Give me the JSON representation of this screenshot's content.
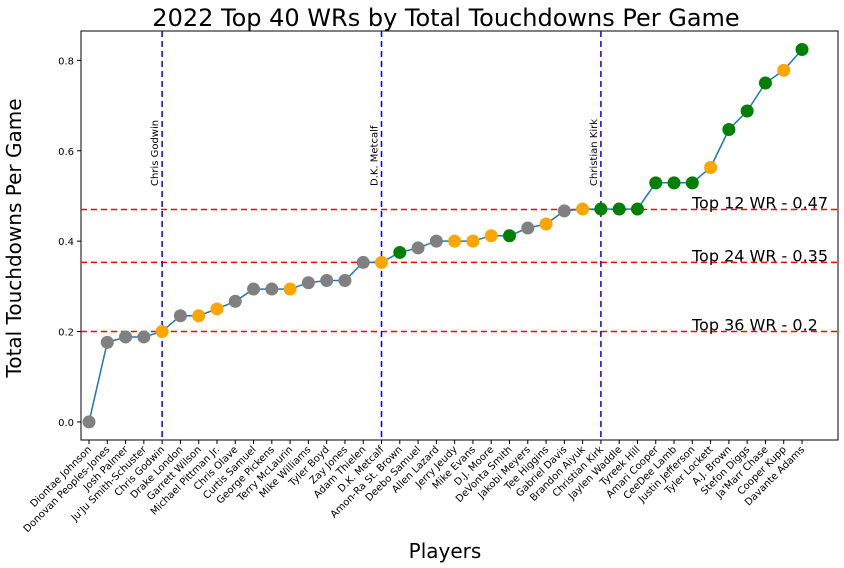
{
  "chart_data": {
    "type": "line",
    "title": "2022 Top 40 WRs by Total Touchdowns Per Game",
    "xlabel": "Players",
    "ylabel": "Total Touchdowns Per Game",
    "ylim": [
      -0.04,
      0.865
    ],
    "yticks": [
      "0.0",
      "0.2",
      "0.4",
      "0.6",
      "0.8"
    ],
    "ytick_values": [
      0.0,
      0.2,
      0.4,
      0.6,
      0.8
    ],
    "grid": false,
    "line_color": "#1f77b4",
    "players": [
      {
        "name": "Diontae Johnson",
        "value": 0.0,
        "color": "#808080"
      },
      {
        "name": "Donovan Peoples-Jones",
        "value": 0.176,
        "color": "#808080"
      },
      {
        "name": "Josh Palmer",
        "value": 0.188,
        "color": "#808080"
      },
      {
        "name": "Ju'Ju Smith-Schuster",
        "value": 0.188,
        "color": "#808080"
      },
      {
        "name": "Chris Godwin",
        "value": 0.2,
        "color": "#ffa500"
      },
      {
        "name": "Drake London",
        "value": 0.235,
        "color": "#808080"
      },
      {
        "name": "Garrett Wilson",
        "value": 0.235,
        "color": "#ffa500"
      },
      {
        "name": "Michael Pittman Jr.",
        "value": 0.25,
        "color": "#ffa500"
      },
      {
        "name": "Chris Olave",
        "value": 0.267,
        "color": "#808080"
      },
      {
        "name": "Curtis Samuel",
        "value": 0.294,
        "color": "#808080"
      },
      {
        "name": "George Pickens",
        "value": 0.294,
        "color": "#808080"
      },
      {
        "name": "Terry McLaurin",
        "value": 0.294,
        "color": "#ffa500"
      },
      {
        "name": "Mike Williams",
        "value": 0.308,
        "color": "#808080"
      },
      {
        "name": "Tyler Boyd",
        "value": 0.313,
        "color": "#808080"
      },
      {
        "name": "Zay Jones",
        "value": 0.313,
        "color": "#808080"
      },
      {
        "name": "Adam Thielen",
        "value": 0.353,
        "color": "#808080"
      },
      {
        "name": "D.K. Metcalf",
        "value": 0.353,
        "color": "#ffa500"
      },
      {
        "name": "Amon-Ra St. Brown",
        "value": 0.375,
        "color": "#008000"
      },
      {
        "name": "Deebo Samuel",
        "value": 0.385,
        "color": "#808080"
      },
      {
        "name": "Allen Lazard",
        "value": 0.4,
        "color": "#808080"
      },
      {
        "name": "Jerry Jeudy",
        "value": 0.4,
        "color": "#ffa500"
      },
      {
        "name": "Mike Evans",
        "value": 0.4,
        "color": "#ffa500"
      },
      {
        "name": "D.J. Moore",
        "value": 0.412,
        "color": "#ffa500"
      },
      {
        "name": "DeVonta Smith",
        "value": 0.412,
        "color": "#008000"
      },
      {
        "name": "Jakobi Meyers",
        "value": 0.429,
        "color": "#808080"
      },
      {
        "name": "Tee Higgins",
        "value": 0.438,
        "color": "#ffa500"
      },
      {
        "name": "Gabriel Davis",
        "value": 0.467,
        "color": "#808080"
      },
      {
        "name": "Brandon Aiyuk",
        "value": 0.471,
        "color": "#ffa500"
      },
      {
        "name": "Christian Kirk",
        "value": 0.471,
        "color": "#008000"
      },
      {
        "name": "Jaylen Waddle",
        "value": 0.471,
        "color": "#008000"
      },
      {
        "name": "Tyreek Hill",
        "value": 0.471,
        "color": "#008000"
      },
      {
        "name": "Amari Cooper",
        "value": 0.529,
        "color": "#008000"
      },
      {
        "name": "CeeDee Lamb",
        "value": 0.529,
        "color": "#008000"
      },
      {
        "name": "Justin Jefferson",
        "value": 0.529,
        "color": "#008000"
      },
      {
        "name": "Tyler Lockett",
        "value": 0.563,
        "color": "#ffa500"
      },
      {
        "name": "A.J. Brown",
        "value": 0.647,
        "color": "#008000"
      },
      {
        "name": "Stefon Diggs",
        "value": 0.688,
        "color": "#008000"
      },
      {
        "name": "Ja'Marr Chase",
        "value": 0.75,
        "color": "#008000"
      },
      {
        "name": "Cooper Kupp",
        "value": 0.778,
        "color": "#ffa500"
      },
      {
        "name": "Davante Adams",
        "value": 0.824,
        "color": "#008000"
      }
    ],
    "thresholds": [
      {
        "label": "Top 12 WR - 0.47",
        "value": 0.47,
        "color": "#ff0000"
      },
      {
        "label": "Top 24 WR - 0.35",
        "value": 0.353,
        "color": "#ff0000"
      },
      {
        "label": "Top 36 WR - 0.2",
        "value": 0.2,
        "color": "#ff0000"
      }
    ],
    "markers": [
      {
        "label": "Chris Godwin",
        "index": 4,
        "color": "#0000ff"
      },
      {
        "label": "D.K. Metcalf",
        "index": 16,
        "color": "#0000ff"
      },
      {
        "label": "Christian Kirk",
        "index": 28,
        "color": "#0000ff"
      }
    ]
  }
}
